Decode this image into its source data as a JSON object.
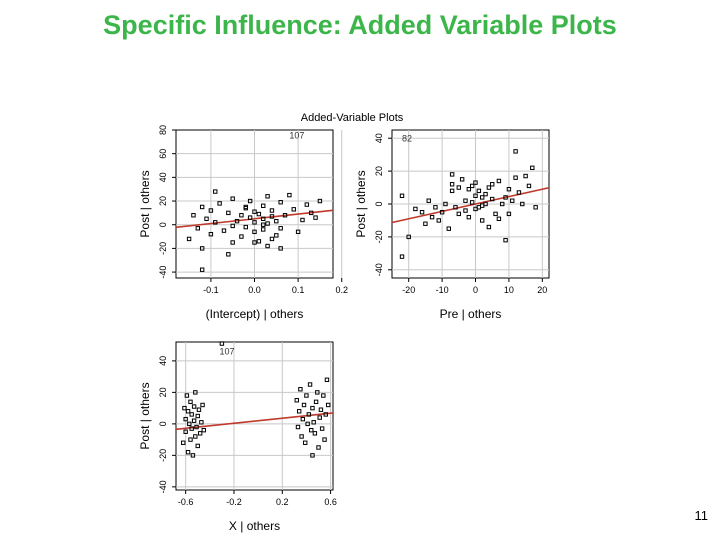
{
  "slide": {
    "title": "Specific Influence: Added Variable Plots",
    "page_number": "11"
  },
  "chart_data": {
    "type": "scatter",
    "title": "Added-Variable Plots",
    "colors": {
      "points": "#000000",
      "fit_line": "#c0392b",
      "grid": "#c8c8c8"
    },
    "grid": true,
    "panels": [
      {
        "id": "intercept",
        "xlabel": "(Intercept) | others",
        "ylabel": "Post | others",
        "xlim": [
          -0.18,
          0.18
        ],
        "ylim": [
          -45,
          80
        ],
        "xticks": [
          -0.1,
          0.0,
          0.1,
          0.2
        ],
        "xtick_labels": [
          "-0.1",
          "0.0",
          "0.1",
          "0.2"
        ],
        "yticks": [
          -40,
          -20,
          0,
          20,
          40,
          60,
          80
        ],
        "ytick_labels": [
          "-40",
          "-20",
          "0",
          "20",
          "40",
          "60",
          "80"
        ],
        "fit": {
          "slope": 40,
          "intercept": 5
        },
        "annotation": {
          "text": "107",
          "x": 0.08,
          "y": 73
        },
        "x": [
          -0.15,
          -0.14,
          -0.13,
          -0.12,
          -0.12,
          -0.11,
          -0.1,
          -0.1,
          -0.09,
          -0.08,
          -0.07,
          -0.06,
          -0.05,
          -0.05,
          -0.04,
          -0.03,
          -0.03,
          -0.02,
          -0.02,
          -0.01,
          -0.01,
          0.0,
          0.0,
          0.0,
          0.01,
          0.01,
          0.02,
          0.02,
          0.02,
          0.03,
          0.03,
          0.04,
          0.04,
          0.05,
          0.05,
          0.06,
          0.06,
          0.07,
          0.08,
          0.09,
          0.1,
          0.11,
          0.12,
          0.13,
          0.14,
          0.15,
          -0.12,
          -0.06,
          0.0,
          0.06,
          -0.09,
          0.03,
          -0.02,
          0.04,
          0.02,
          -0.05
        ],
        "y": [
          -12,
          8,
          -3,
          15,
          -20,
          5,
          12,
          -8,
          2,
          18,
          -5,
          10,
          -15,
          22,
          3,
          8,
          -10,
          14,
          -2,
          6,
          20,
          -6,
          11,
          2,
          -14,
          9,
          16,
          -4,
          5,
          1,
          -18,
          12,
          7,
          -9,
          3,
          19,
          -3,
          8,
          25,
          13,
          -6,
          4,
          17,
          10,
          6,
          20,
          -38,
          -25,
          -15,
          -20,
          28,
          24,
          15,
          -12,
          0,
          -1
        ]
      },
      {
        "id": "pre",
        "xlabel": "Pre | others",
        "ylabel": "Post | others",
        "xlim": [
          -25,
          22
        ],
        "ylim": [
          -45,
          45
        ],
        "xticks": [
          -20,
          -10,
          0,
          10,
          20
        ],
        "xtick_labels": [
          "-20",
          "-10",
          "0",
          "10",
          "20"
        ],
        "yticks": [
          -40,
          -20,
          0,
          20,
          40
        ],
        "ytick_labels": [
          "-40",
          "-20",
          "0",
          "20",
          "40"
        ],
        "fit": {
          "slope": 0.45,
          "intercept": 0
        },
        "annotation": {
          "text": "82",
          "x": -22,
          "y": 38
        },
        "x": [
          -22,
          -20,
          -18,
          -16,
          -15,
          -14,
          -13,
          -12,
          -11,
          -10,
          -9,
          -8,
          -7,
          -7,
          -6,
          -5,
          -5,
          -4,
          -3,
          -3,
          -2,
          -2,
          -1,
          -1,
          0,
          0,
          0,
          1,
          1,
          2,
          2,
          3,
          3,
          4,
          4,
          5,
          5,
          6,
          7,
          7,
          8,
          9,
          10,
          10,
          11,
          12,
          13,
          14,
          15,
          16,
          17,
          18,
          -22,
          9,
          12,
          -7,
          2
        ],
        "y": [
          5,
          -20,
          -3,
          -5,
          -12,
          2,
          -8,
          -2,
          -10,
          -5,
          0,
          -15,
          8,
          12,
          -2,
          -6,
          10,
          15,
          -4,
          2,
          9,
          -8,
          1,
          11,
          -3,
          13,
          5,
          -2,
          8,
          4,
          -10,
          6,
          0,
          -14,
          10,
          3,
          12,
          -6,
          -9,
          14,
          0,
          4,
          -6,
          9,
          2,
          16,
          7,
          0,
          17,
          11,
          22,
          -2,
          -32,
          -22,
          32,
          18,
          -1
        ]
      },
      {
        "id": "x",
        "xlabel": "X | others",
        "ylabel": "Post | others",
        "xlim": [
          -0.68,
          0.62
        ],
        "ylim": [
          -42,
          52
        ],
        "xticks": [
          -0.6,
          -0.2,
          0.2,
          0.6
        ],
        "xtick_labels": [
          "-0.6",
          "-0.2",
          "0.2",
          "0.6"
        ],
        "yticks": [
          -40,
          -20,
          0,
          20,
          40
        ],
        "ytick_labels": [
          "-40",
          "-20",
          "0",
          "20",
          "40"
        ],
        "fit": {
          "slope": 8,
          "intercept": 2
        },
        "annotation": {
          "text": "107",
          "x": -0.32,
          "y": 44
        },
        "x": [
          -0.62,
          -0.61,
          -0.6,
          -0.6,
          -0.59,
          -0.58,
          -0.58,
          -0.57,
          -0.56,
          -0.56,
          -0.55,
          -0.55,
          -0.54,
          -0.53,
          -0.53,
          -0.52,
          -0.52,
          -0.51,
          -0.5,
          -0.5,
          -0.49,
          -0.48,
          -0.47,
          -0.46,
          -0.45,
          0.32,
          0.33,
          0.34,
          0.35,
          0.36,
          0.37,
          0.38,
          0.39,
          0.4,
          0.41,
          0.42,
          0.43,
          0.44,
          0.45,
          0.46,
          0.47,
          0.48,
          0.49,
          0.5,
          0.51,
          0.52,
          0.53,
          0.54,
          0.55,
          0.56,
          0.57,
          0.58,
          -0.3,
          0.45
        ],
        "y": [
          -12,
          10,
          3,
          -5,
          18,
          -18,
          8,
          0,
          -10,
          14,
          -3,
          6,
          -20,
          2,
          11,
          -8,
          20,
          -2,
          5,
          -14,
          9,
          -6,
          1,
          12,
          -4,
          15,
          -2,
          8,
          22,
          -8,
          3,
          12,
          -12,
          18,
          0,
          6,
          25,
          -4,
          10,
          1,
          -6,
          14,
          20,
          -15,
          4,
          9,
          -3,
          18,
          -10,
          6,
          28,
          12,
          51,
          -20
        ]
      }
    ]
  }
}
